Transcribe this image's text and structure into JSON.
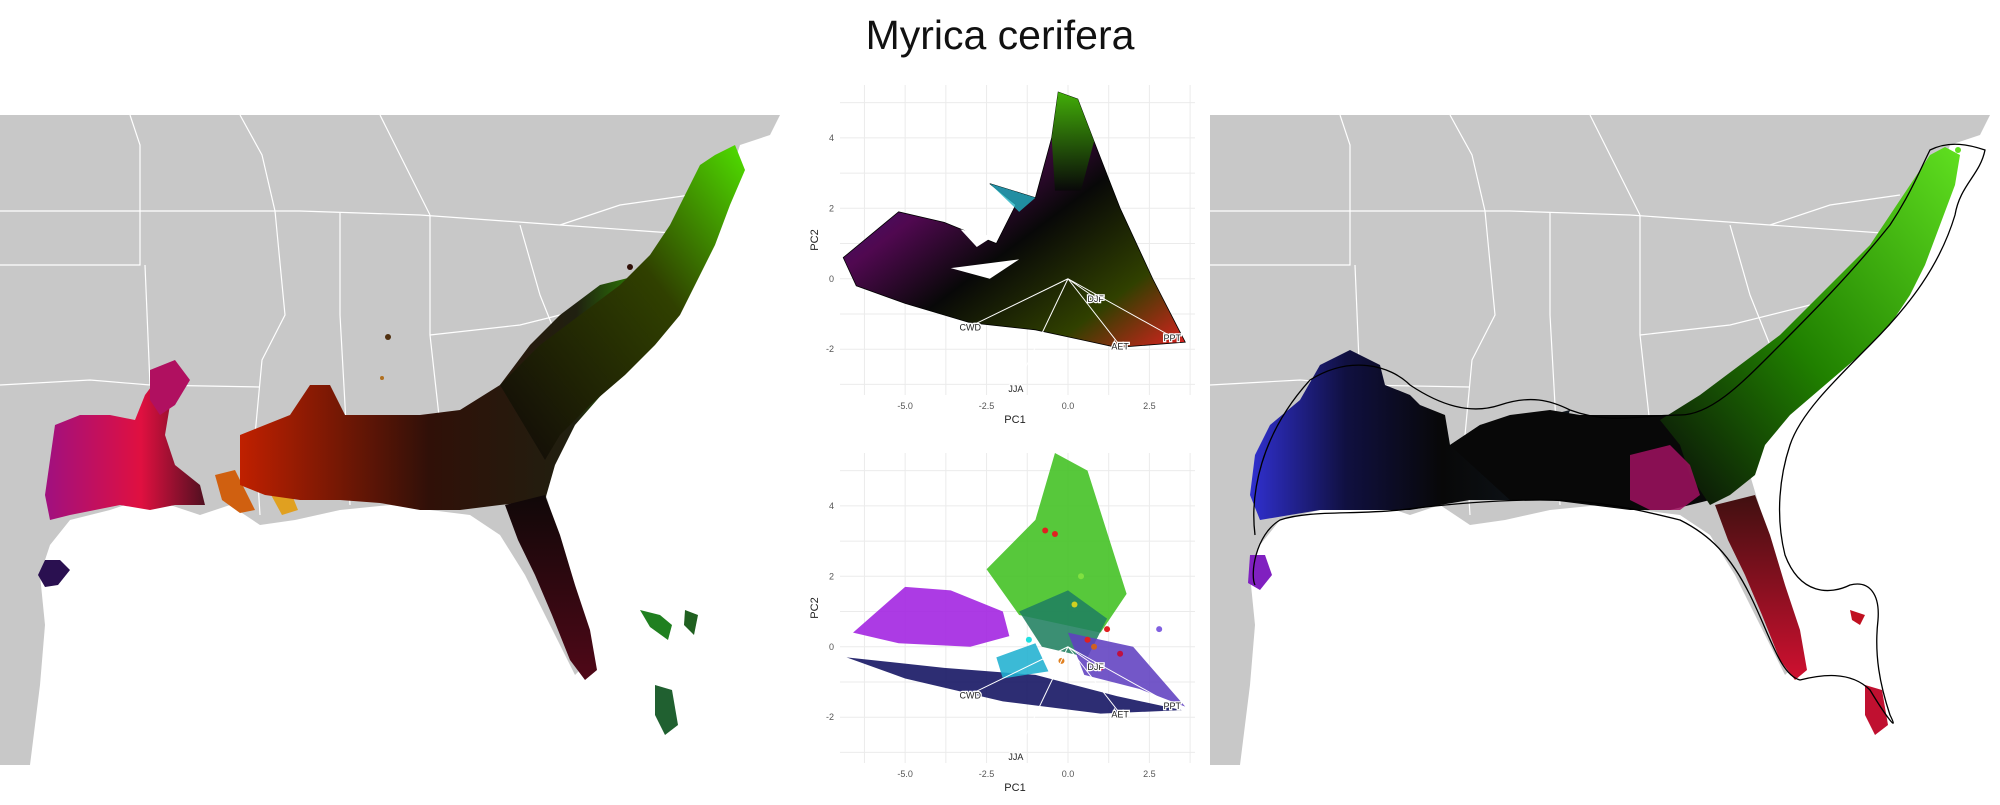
{
  "figure": {
    "title": "Myrica cerifera"
  },
  "colors": {
    "land": "#c8c8c8",
    "border": "#ffffff",
    "ocean": "#ffffff",
    "grid": "#ebebeb",
    "vector": "#ffffff",
    "outline": "#000000"
  },
  "panels": [
    {
      "id": "range-map-left",
      "type": "map",
      "content": "climate-colored occurrence range"
    },
    {
      "id": "pca-top",
      "type": "pca-biplot"
    },
    {
      "id": "pca-bottom",
      "type": "pca-biplot"
    },
    {
      "id": "range-map-right",
      "type": "map",
      "content": "climate-colored range within convex hull outline"
    }
  ],
  "chart_data": [
    {
      "type": "scatter",
      "title": "",
      "xlabel": "PC1",
      "ylabel": "PC2",
      "xticks": [
        "-5.0",
        "-2.5",
        "0.0",
        "2.5"
      ],
      "yticks": [
        "4",
        "2",
        "0",
        "-2"
      ],
      "x_tick_values": [
        -5,
        -2.5,
        0,
        2.5
      ],
      "y_tick_values": [
        4,
        2,
        0,
        -2
      ],
      "xlim": [
        -7.0,
        3.9
      ],
      "ylim": [
        -3.3,
        5.5
      ],
      "grid": true,
      "vectors": [
        {
          "label": "CWD",
          "x": -3.0,
          "y": -1.35
        },
        {
          "label": "JJA",
          "x": -1.6,
          "y": -3.1
        },
        {
          "label": "AET",
          "x": 1.6,
          "y": -1.9
        },
        {
          "label": "DJF",
          "x": 0.85,
          "y": -0.55
        },
        {
          "label": "PPT",
          "x": 3.2,
          "y": -1.65
        }
      ]
    },
    {
      "type": "scatter",
      "title": "",
      "xlabel": "PC1",
      "ylabel": "PC2",
      "xticks": [
        "-5.0",
        "-2.5",
        "0.0",
        "2.5"
      ],
      "yticks": [
        "4",
        "2",
        "0",
        "-2"
      ],
      "x_tick_values": [
        -5,
        -2.5,
        0,
        2.5
      ],
      "y_tick_values": [
        4,
        2,
        0,
        -2
      ],
      "xlim": [
        -7.0,
        3.9
      ],
      "ylim": [
        -3.3,
        5.5
      ],
      "grid": true,
      "vectors": [
        {
          "label": "CWD",
          "x": -3.0,
          "y": -1.35
        },
        {
          "label": "JJA",
          "x": -1.6,
          "y": -3.1
        },
        {
          "label": "AET",
          "x": 1.6,
          "y": -1.9
        },
        {
          "label": "DJF",
          "x": 0.85,
          "y": -0.55
        },
        {
          "label": "PPT",
          "x": 3.2,
          "y": -1.65
        }
      ]
    }
  ]
}
